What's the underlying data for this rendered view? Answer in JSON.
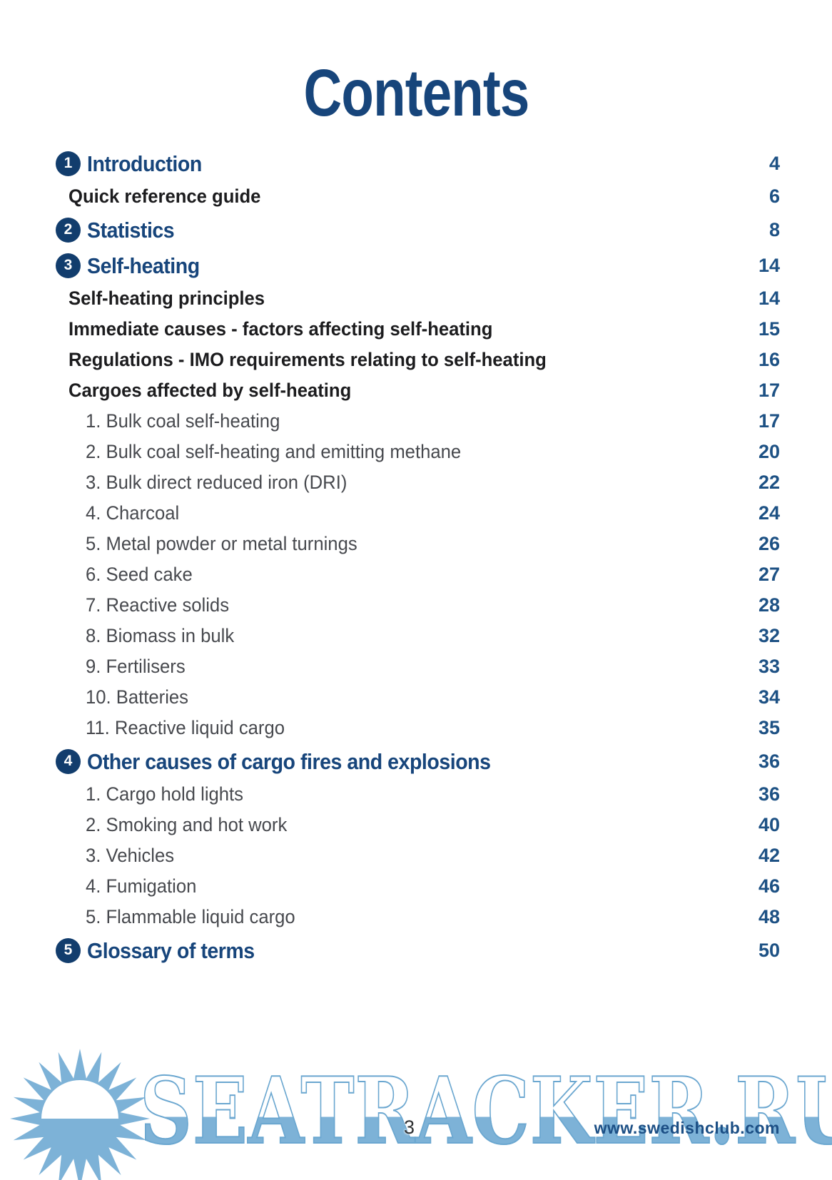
{
  "page": {
    "title": "Contents",
    "page_number": "3",
    "website_url": "www.swedishclub.com",
    "watermark_text": "SEATRACKER.RU"
  },
  "colors": {
    "navy": "#17457b",
    "page-num-blue": "#1d5184",
    "badge-navy": "#123d6d",
    "text-dark": "#1c1c1e",
    "text-gray": "#47494e",
    "wm-blue": "#7db2d7",
    "wm-stroke": "#6ba7d0",
    "url-blue": "#1c4f85",
    "page-3-gray": "#303234"
  },
  "icons": {
    "sun_logo": "seatracker-sun-icon"
  },
  "toc": {
    "entries": [
      {
        "type": "section",
        "num": "1",
        "label": "Introduction",
        "page": "4"
      },
      {
        "type": "sub",
        "label": "Quick reference guide",
        "page": "6"
      },
      {
        "type": "section",
        "num": "2",
        "label": "Statistics",
        "page": "8"
      },
      {
        "type": "section",
        "num": "3",
        "label": "Self-heating",
        "page": "14"
      },
      {
        "type": "sub",
        "label": "Self-heating principles",
        "page": "14"
      },
      {
        "type": "sub",
        "label": "Immediate causes - factors affecting self-heating",
        "page": "15"
      },
      {
        "type": "sub",
        "label": "Regulations - IMO requirements relating to self-heating",
        "page": "16"
      },
      {
        "type": "sub",
        "label": "Cargoes affected by self-heating",
        "page": "17"
      },
      {
        "type": "item",
        "label": "1. Bulk coal self-heating",
        "page": "17"
      },
      {
        "type": "item",
        "label": "2. Bulk coal self-heating and emitting methane",
        "page": "20"
      },
      {
        "type": "item",
        "label": "3. Bulk direct reduced iron (DRI)",
        "page": "22"
      },
      {
        "type": "item",
        "label": "4. Charcoal",
        "page": "24"
      },
      {
        "type": "item",
        "label": "5. Metal powder or metal turnings",
        "page": "26"
      },
      {
        "type": "item",
        "label": "6. Seed cake",
        "page": "27"
      },
      {
        "type": "item",
        "label": "7. Reactive solids",
        "page": "28"
      },
      {
        "type": "item",
        "label": "8. Biomass in bulk",
        "page": "32"
      },
      {
        "type": "item",
        "label": "9. Fertilisers",
        "page": "33"
      },
      {
        "type": "item",
        "label": "10. Batteries",
        "page": "34"
      },
      {
        "type": "item",
        "label": "11. Reactive liquid cargo",
        "page": "35"
      },
      {
        "type": "section",
        "num": "4",
        "label": "Other causes of cargo fires and explosions",
        "page": "36"
      },
      {
        "type": "item",
        "label": "1. Cargo hold lights",
        "page": "36"
      },
      {
        "type": "item",
        "label": "2. Smoking and hot work",
        "page": "40"
      },
      {
        "type": "item",
        "label": "3. Vehicles",
        "page": "42"
      },
      {
        "type": "item",
        "label": "4. Fumigation",
        "page": "46"
      },
      {
        "type": "item",
        "label": "5. Flammable liquid cargo",
        "page": "48"
      },
      {
        "type": "section",
        "num": "5",
        "label": "Glossary of terms",
        "page": "50"
      }
    ]
  }
}
